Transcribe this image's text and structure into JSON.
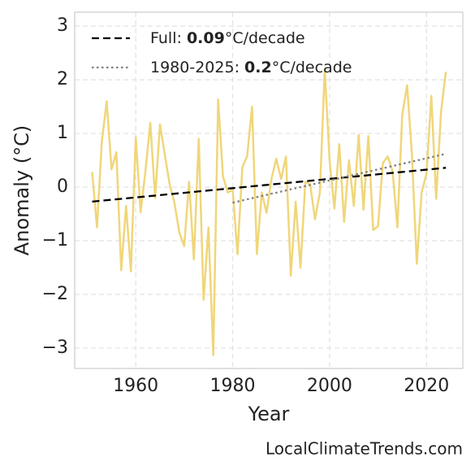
{
  "chart_data": {
    "type": "line",
    "x_label": "Year",
    "y_label": "Anomaly (°C)",
    "source": "LocalClimateTrends.com",
    "xlim": [
      1947.4,
      2027.5
    ],
    "ylim": [
      -3.38,
      3.26
    ],
    "xticks": [
      1960,
      1980,
      2000,
      2020
    ],
    "yticks": [
      {
        "value": -3,
        "label": "−3"
      },
      {
        "value": -2,
        "label": "−2"
      },
      {
        "value": -1,
        "label": "−1"
      },
      0,
      1,
      2,
      3
    ],
    "grid": true,
    "legend": "upper left",
    "series": [
      {
        "color": "#f0d67a",
        "style": "solid",
        "x": [
          1951,
          1952,
          1953,
          1954,
          1955,
          1956,
          1957,
          1958,
          1959,
          1960,
          1961,
          1962,
          1963,
          1964,
          1965,
          1966,
          1967,
          1968,
          1969,
          1970,
          1971,
          1972,
          1973,
          1974,
          1975,
          1976,
          1977,
          1978,
          1979,
          1980,
          1981,
          1982,
          1983,
          1984,
          1985,
          1986,
          1987,
          1988,
          1989,
          1990,
          1991,
          1992,
          1993,
          1994,
          1995,
          1996,
          1997,
          1998,
          1999,
          2000,
          2001,
          2002,
          2003,
          2004,
          2005,
          2006,
          2007,
          2008,
          2009,
          2010,
          2011,
          2012,
          2013,
          2014,
          2015,
          2016,
          2017,
          2018,
          2019,
          2020,
          2021,
          2022,
          2023,
          2024
        ],
        "values": [
          0.28,
          -0.75,
          0.85,
          1.6,
          0.33,
          0.65,
          -1.55,
          -0.35,
          -1.57,
          0.93,
          -0.47,
          0.3,
          1.2,
          -0.2,
          1.17,
          0.6,
          0.05,
          -0.3,
          -0.85,
          -1.1,
          0.1,
          -1.35,
          0.9,
          -2.1,
          -0.75,
          -3.13,
          1.63,
          0.2,
          -0.1,
          -0.05,
          -1.25,
          0.37,
          0.58,
          1.5,
          -1.25,
          -0.1,
          -0.48,
          0.15,
          0.53,
          0.15,
          0.57,
          -1.65,
          -0.27,
          -1.5,
          0.1,
          0.05,
          -0.6,
          -0.1,
          2.2,
          0.5,
          -0.4,
          0.8,
          -0.65,
          0.5,
          -0.35,
          0.97,
          -0.42,
          0.95,
          -0.8,
          -0.73,
          0.45,
          0.57,
          0.3,
          -0.75,
          1.35,
          1.9,
          0.6,
          -1.43,
          -0.1,
          0.25,
          1.7,
          -0.22,
          1.4,
          2.15
        ]
      },
      {
        "color": "#000000",
        "style": "dashed",
        "legend_parts": [
          "Full: ",
          "0.09",
          "°C/decade"
        ],
        "x": [
          1951,
          2024
        ],
        "values": [
          -0.27,
          0.36
        ]
      },
      {
        "color": "#808080",
        "style": "dotted",
        "legend_parts": [
          "1980-2025: ",
          "0.2",
          "°C/decade"
        ],
        "x": [
          1980,
          2024
        ],
        "values": [
          -0.29,
          0.62
        ]
      }
    ]
  }
}
